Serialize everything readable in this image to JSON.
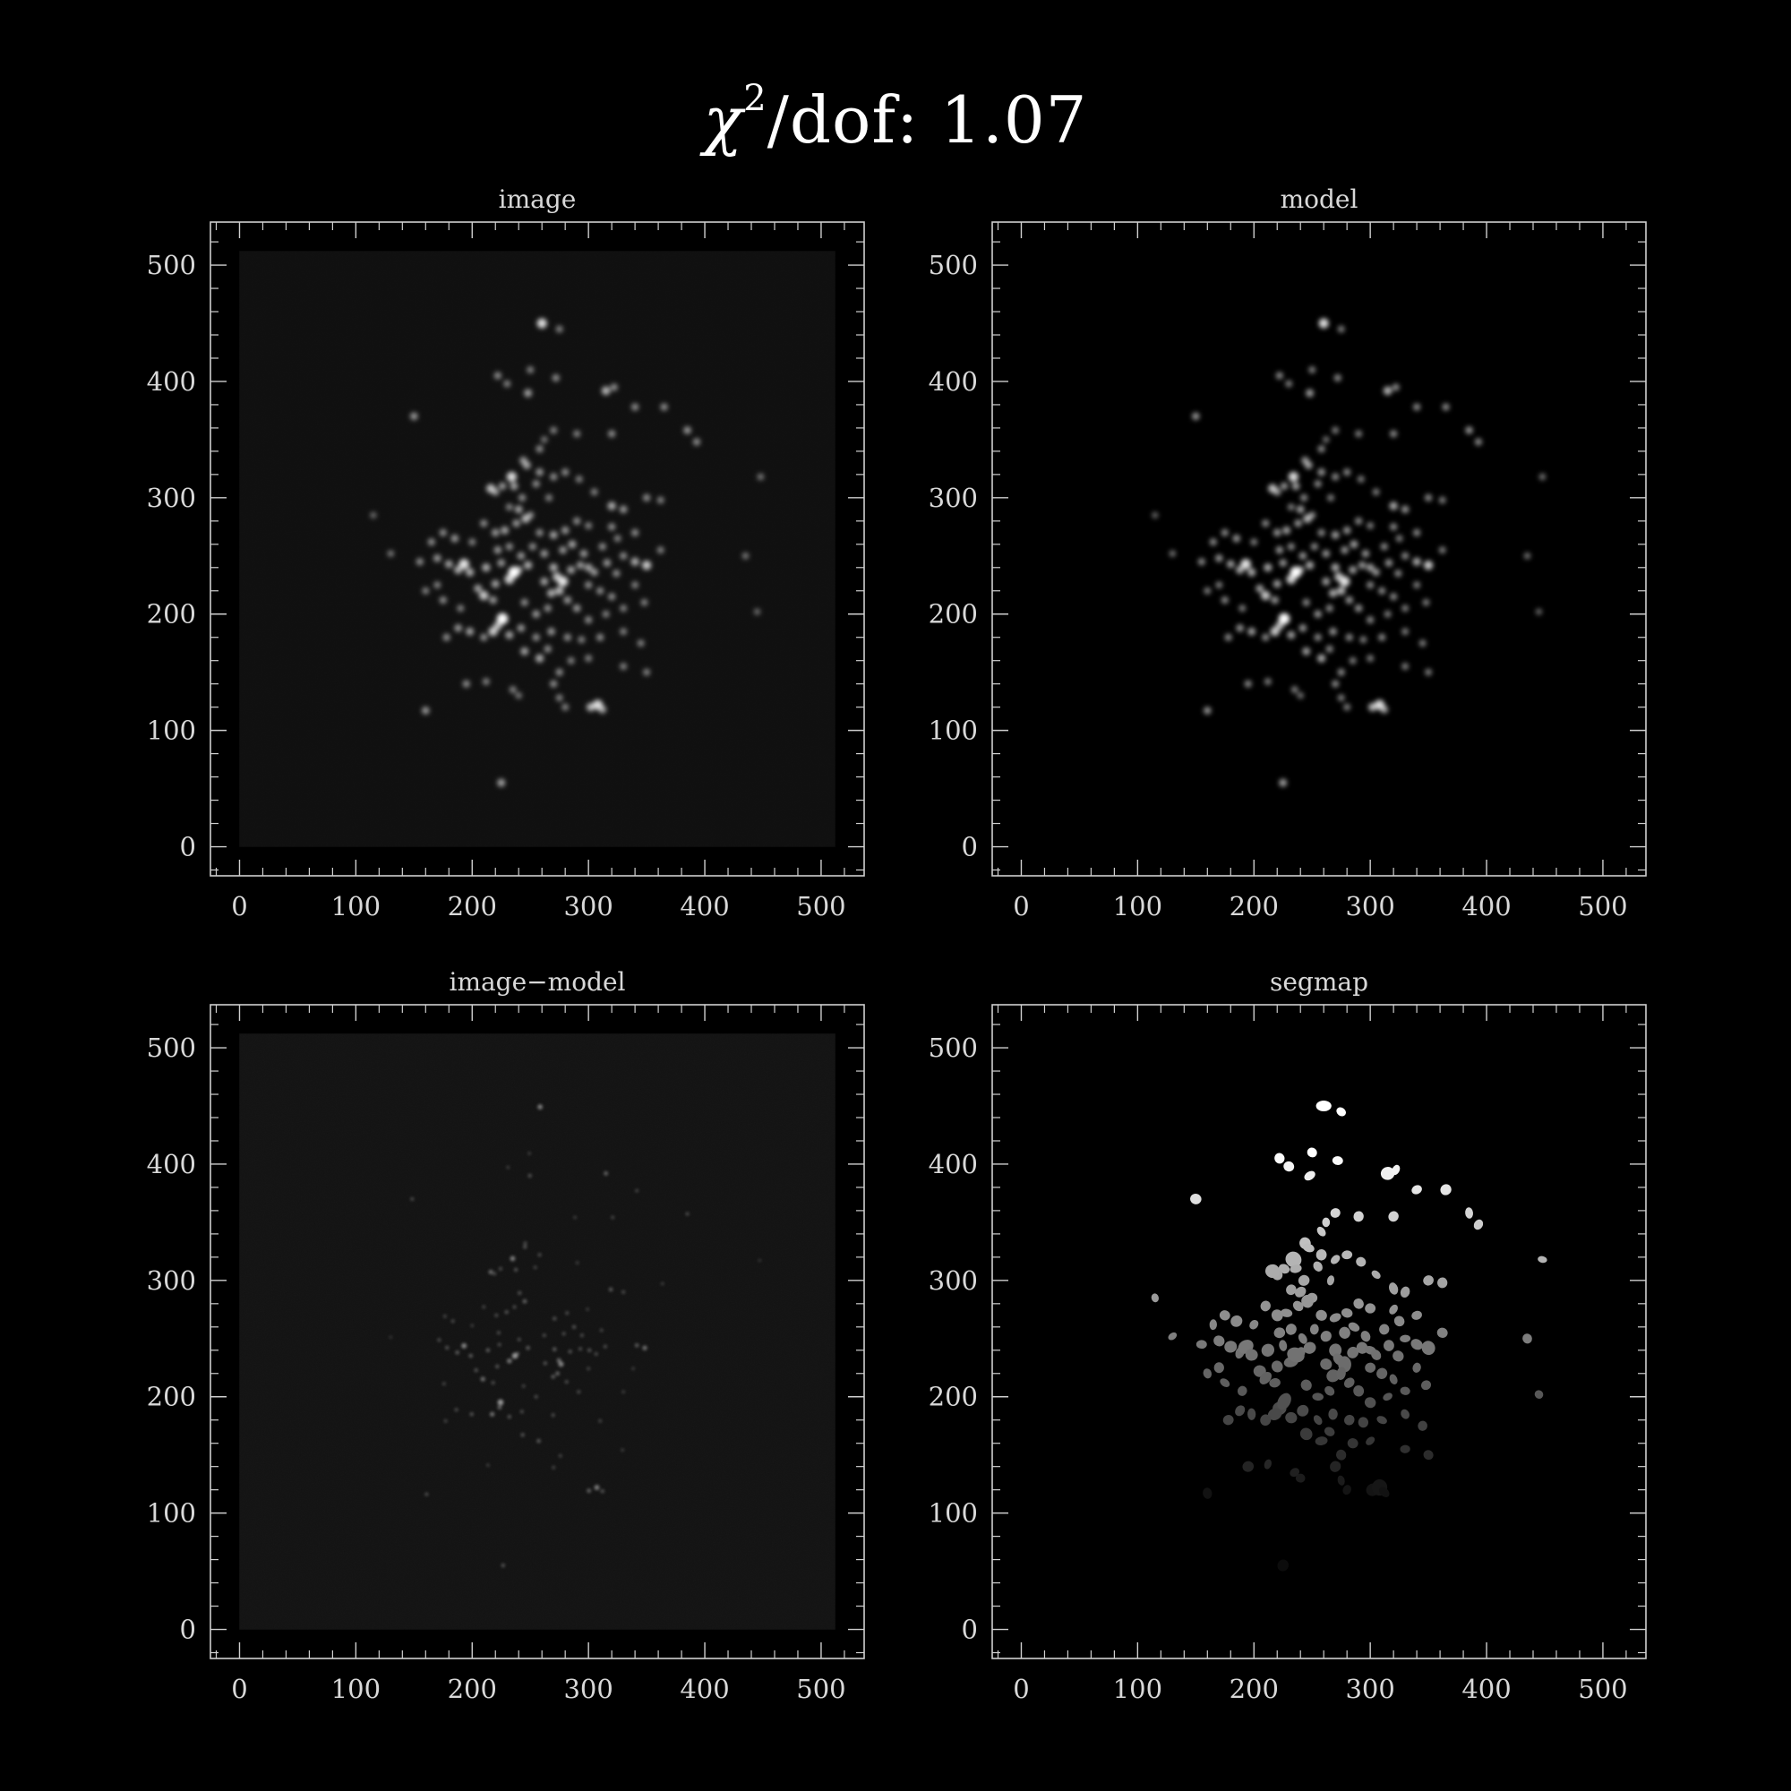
{
  "title": {
    "symbol": "χ",
    "exponent": "2",
    "rest": "/dof: 1.07"
  },
  "colors": {
    "background": "#000000",
    "axes": "#cfcfcf",
    "text": "#d8d8d8",
    "source": "#ffffff"
  },
  "chart_data": [
    {
      "type": "heatmap",
      "title": "image",
      "xlim": [
        -25,
        537
      ],
      "ylim": [
        -25,
        537
      ],
      "ticks": [
        0,
        100,
        200,
        300,
        400,
        500
      ],
      "tick_labels": [
        "0",
        "100",
        "200",
        "300",
        "400",
        "500"
      ],
      "style": "blur",
      "noise": 0.035
    },
    {
      "type": "heatmap",
      "title": "model",
      "xlim": [
        -25,
        537
      ],
      "ylim": [
        -25,
        537
      ],
      "ticks": [
        0,
        100,
        200,
        300,
        400,
        500
      ],
      "tick_labels": [
        "0",
        "100",
        "200",
        "300",
        "400",
        "500"
      ],
      "style": "blur",
      "noise": 0.0
    },
    {
      "type": "heatmap",
      "title": "image−model",
      "xlim": [
        -25,
        537
      ],
      "ylim": [
        -25,
        537
      ],
      "ticks": [
        0,
        100,
        200,
        300,
        400,
        500
      ],
      "tick_labels": [
        "0",
        "100",
        "200",
        "300",
        "400",
        "500"
      ],
      "style": "residual",
      "noise": 0.06
    },
    {
      "type": "heatmap",
      "title": "segmap",
      "xlim": [
        -25,
        537
      ],
      "ylim": [
        -25,
        537
      ],
      "ticks": [
        0,
        100,
        200,
        300,
        400,
        500
      ],
      "tick_labels": [
        "0",
        "100",
        "200",
        "300",
        "400",
        "500"
      ],
      "style": "segments",
      "noise": 0.0
    }
  ],
  "sources": [
    [
      260,
      450,
      0.8
    ],
    [
      275,
      445,
      0.35
    ],
    [
      222,
      405,
      0.4
    ],
    [
      230,
      398,
      0.35
    ],
    [
      248,
      390,
      0.5
    ],
    [
      272,
      403,
      0.4
    ],
    [
      250,
      410,
      0.35
    ],
    [
      315,
      392,
      0.6
    ],
    [
      322,
      395,
      0.4
    ],
    [
      340,
      378,
      0.4
    ],
    [
      150,
      370,
      0.45
    ],
    [
      365,
      378,
      0.4
    ],
    [
      385,
      358,
      0.45
    ],
    [
      393,
      348,
      0.4
    ],
    [
      270,
      358,
      0.35
    ],
    [
      290,
      355,
      0.35
    ],
    [
      258,
      342,
      0.4
    ],
    [
      262,
      350,
      0.3
    ],
    [
      320,
      355,
      0.4
    ],
    [
      244,
      332,
      0.45
    ],
    [
      247,
      328,
      0.5
    ],
    [
      255,
      312,
      0.4
    ],
    [
      258,
      322,
      0.45
    ],
    [
      234,
      318,
      0.8
    ],
    [
      236,
      310,
      0.5
    ],
    [
      226,
      310,
      0.45
    ],
    [
      220,
      305,
      0.45
    ],
    [
      216,
      308,
      0.65
    ],
    [
      270,
      318,
      0.4
    ],
    [
      280,
      322,
      0.4
    ],
    [
      292,
      316,
      0.35
    ],
    [
      243,
      300,
      0.4
    ],
    [
      266,
      300,
      0.35
    ],
    [
      240,
      290,
      0.5
    ],
    [
      250,
      285,
      0.4
    ],
    [
      232,
      292,
      0.35
    ],
    [
      320,
      293,
      0.55
    ],
    [
      330,
      290,
      0.45
    ],
    [
      350,
      300,
      0.4
    ],
    [
      362,
      298,
      0.35
    ],
    [
      305,
      305,
      0.35
    ],
    [
      115,
      285,
      0.25
    ],
    [
      210,
      278,
      0.4
    ],
    [
      220,
      270,
      0.45
    ],
    [
      228,
      272,
      0.5
    ],
    [
      238,
      278,
      0.45
    ],
    [
      246,
      282,
      0.6
    ],
    [
      258,
      270,
      0.4
    ],
    [
      270,
      268,
      0.5
    ],
    [
      280,
      272,
      0.45
    ],
    [
      290,
      280,
      0.4
    ],
    [
      300,
      276,
      0.35
    ],
    [
      320,
      275,
      0.4
    ],
    [
      340,
      270,
      0.4
    ],
    [
      175,
      270,
      0.4
    ],
    [
      185,
      265,
      0.45
    ],
    [
      165,
      262,
      0.4
    ],
    [
      200,
      262,
      0.35
    ],
    [
      222,
      255,
      0.45
    ],
    [
      232,
      258,
      0.4
    ],
    [
      242,
      250,
      0.45
    ],
    [
      252,
      258,
      0.4
    ],
    [
      262,
      252,
      0.45
    ],
    [
      278,
      255,
      0.45
    ],
    [
      286,
      260,
      0.5
    ],
    [
      296,
      252,
      0.45
    ],
    [
      312,
      258,
      0.4
    ],
    [
      325,
      265,
      0.35
    ],
    [
      330,
      250,
      0.4
    ],
    [
      340,
      245,
      0.55
    ],
    [
      350,
      242,
      0.7
    ],
    [
      362,
      255,
      0.35
    ],
    [
      130,
      252,
      0.3
    ],
    [
      155,
      245,
      0.4
    ],
    [
      170,
      248,
      0.45
    ],
    [
      180,
      243,
      0.5
    ],
    [
      188,
      238,
      0.55
    ],
    [
      193,
      243,
      0.85
    ],
    [
      198,
      236,
      0.55
    ],
    [
      212,
      240,
      0.55
    ],
    [
      225,
      244,
      0.45
    ],
    [
      240,
      238,
      0.45
    ],
    [
      248,
      242,
      0.55
    ],
    [
      270,
      240,
      0.55
    ],
    [
      273,
      232,
      0.65
    ],
    [
      278,
      228,
      0.85
    ],
    [
      285,
      238,
      0.5
    ],
    [
      293,
      242,
      0.45
    ],
    [
      300,
      240,
      0.5
    ],
    [
      305,
      236,
      0.45
    ],
    [
      316,
      244,
      0.45
    ],
    [
      324,
      235,
      0.4
    ],
    [
      232,
      230,
      0.75
    ],
    [
      236,
      236,
      1.0
    ],
    [
      220,
      226,
      0.5
    ],
    [
      205,
      222,
      0.5
    ],
    [
      210,
      216,
      0.7
    ],
    [
      218,
      212,
      0.45
    ],
    [
      262,
      228,
      0.5
    ],
    [
      268,
      218,
      0.55
    ],
    [
      275,
      220,
      0.6
    ],
    [
      282,
      212,
      0.45
    ],
    [
      300,
      225,
      0.4
    ],
    [
      310,
      220,
      0.4
    ],
    [
      320,
      215,
      0.4
    ],
    [
      340,
      225,
      0.35
    ],
    [
      348,
      210,
      0.35
    ],
    [
      170,
      225,
      0.35
    ],
    [
      175,
      212,
      0.4
    ],
    [
      160,
      220,
      0.35
    ],
    [
      190,
      205,
      0.35
    ],
    [
      245,
      210,
      0.4
    ],
    [
      255,
      200,
      0.45
    ],
    [
      265,
      205,
      0.4
    ],
    [
      290,
      205,
      0.45
    ],
    [
      300,
      195,
      0.4
    ],
    [
      315,
      200,
      0.35
    ],
    [
      330,
      205,
      0.35
    ],
    [
      445,
      202,
      0.25
    ],
    [
      222,
      190,
      0.6
    ],
    [
      226,
      196,
      1.0
    ],
    [
      218,
      185,
      0.7
    ],
    [
      232,
      182,
      0.5
    ],
    [
      242,
      188,
      0.45
    ],
    [
      198,
      185,
      0.5
    ],
    [
      188,
      188,
      0.45
    ],
    [
      178,
      180,
      0.4
    ],
    [
      210,
      180,
      0.4
    ],
    [
      255,
      180,
      0.4
    ],
    [
      268,
      185,
      0.45
    ],
    [
      282,
      180,
      0.4
    ],
    [
      294,
      178,
      0.35
    ],
    [
      310,
      180,
      0.4
    ],
    [
      330,
      185,
      0.35
    ],
    [
      345,
      175,
      0.35
    ],
    [
      245,
      168,
      0.5
    ],
    [
      258,
      162,
      0.55
    ],
    [
      265,
      170,
      0.4
    ],
    [
      275,
      150,
      0.4
    ],
    [
      285,
      160,
      0.35
    ],
    [
      300,
      162,
      0.35
    ],
    [
      330,
      155,
      0.35
    ],
    [
      350,
      150,
      0.35
    ],
    [
      195,
      140,
      0.4
    ],
    [
      212,
      142,
      0.35
    ],
    [
      235,
      135,
      0.35
    ],
    [
      240,
      130,
      0.3
    ],
    [
      270,
      140,
      0.4
    ],
    [
      275,
      128,
      0.35
    ],
    [
      280,
      120,
      0.35
    ],
    [
      302,
      120,
      0.6
    ],
    [
      308,
      122,
      0.8
    ],
    [
      312,
      118,
      0.5
    ],
    [
      160,
      117,
      0.45
    ],
    [
      225,
      55,
      0.5
    ],
    [
      435,
      250,
      0.3
    ],
    [
      448,
      318,
      0.3
    ]
  ]
}
